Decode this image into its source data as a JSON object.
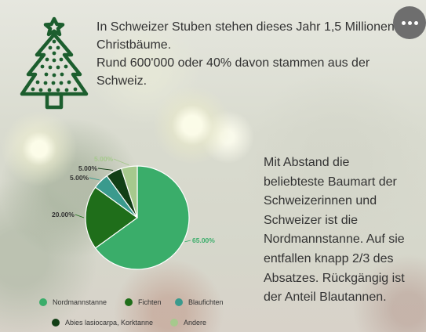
{
  "intro": {
    "line1": "In Schweizer Stuben stehen dieses Jahr 1,5 Millionen Christbäume.",
    "line2": "Rund 600'000 oder 40% davon stammen aus der Schweiz."
  },
  "side_text": "Mit Abstand die beliebteste Baumart der Schweizerinnen und Schweizer ist die Nordmannstanne. Auf sie entfallen knapp 2/3 des Absatzes. Rückgängig ist der Anteil Blautannen.",
  "icons": {
    "tree": "christmas-tree-icon",
    "menu": "more-horizontal-icon"
  },
  "colors": {
    "tree_icon": "#1c5e2e",
    "menu_bg": "#6e6e6e"
  },
  "chart_data": {
    "type": "pie",
    "categories": [
      "Nordmannstanne",
      "Fichten",
      "Blaufichten",
      "Abies lasiocarpa, Korktanne",
      "Andere"
    ],
    "values": [
      65,
      20,
      5,
      5,
      5
    ],
    "value_labels": [
      "65.00%",
      "20.00%",
      "5.00%",
      "5.00%",
      "5.00%"
    ],
    "colors": [
      "#3aad6a",
      "#1f6e1a",
      "#3a9a8d",
      "#123f16",
      "#a6c98d"
    ],
    "legend_placement": "bottom"
  }
}
